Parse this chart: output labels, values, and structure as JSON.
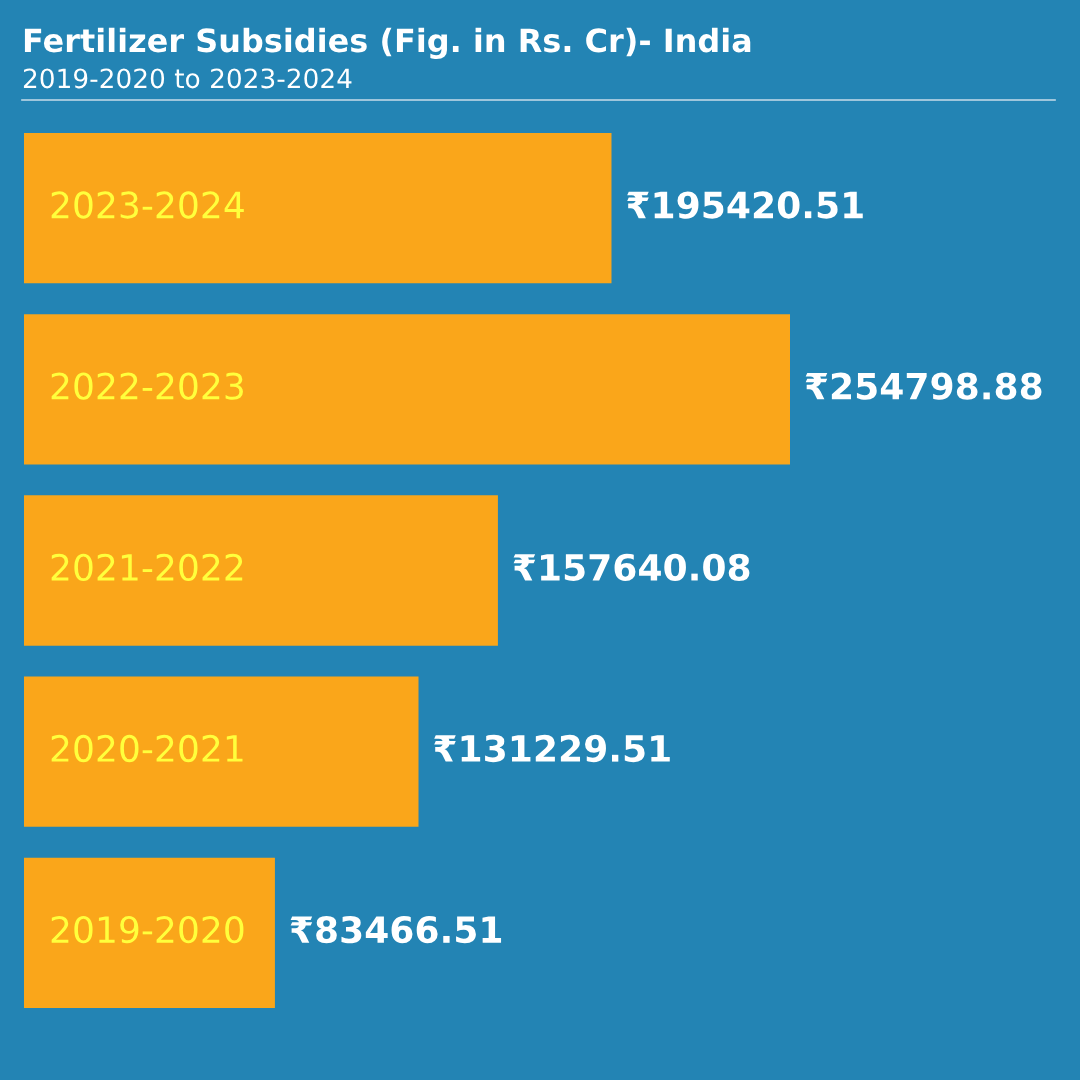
{
  "chart_data": {
    "type": "bar",
    "orientation": "horizontal",
    "title": "Fertilizer Subsidies (Fig. in Rs. Cr)- India",
    "subtitle": "2019-2020 to 2023-2024",
    "categories": [
      "2023-2024",
      "2022-2023",
      "2021-2022",
      "2020-2021",
      "2019-2020"
    ],
    "values": [
      195420.51,
      254798.88,
      157640.08,
      131229.51,
      83466.51
    ],
    "value_labels": [
      "₹195420.51",
      "₹254798.88",
      "₹157640.08",
      "₹131229.51",
      "₹83466.51"
    ],
    "color": "#faa61a"
  }
}
